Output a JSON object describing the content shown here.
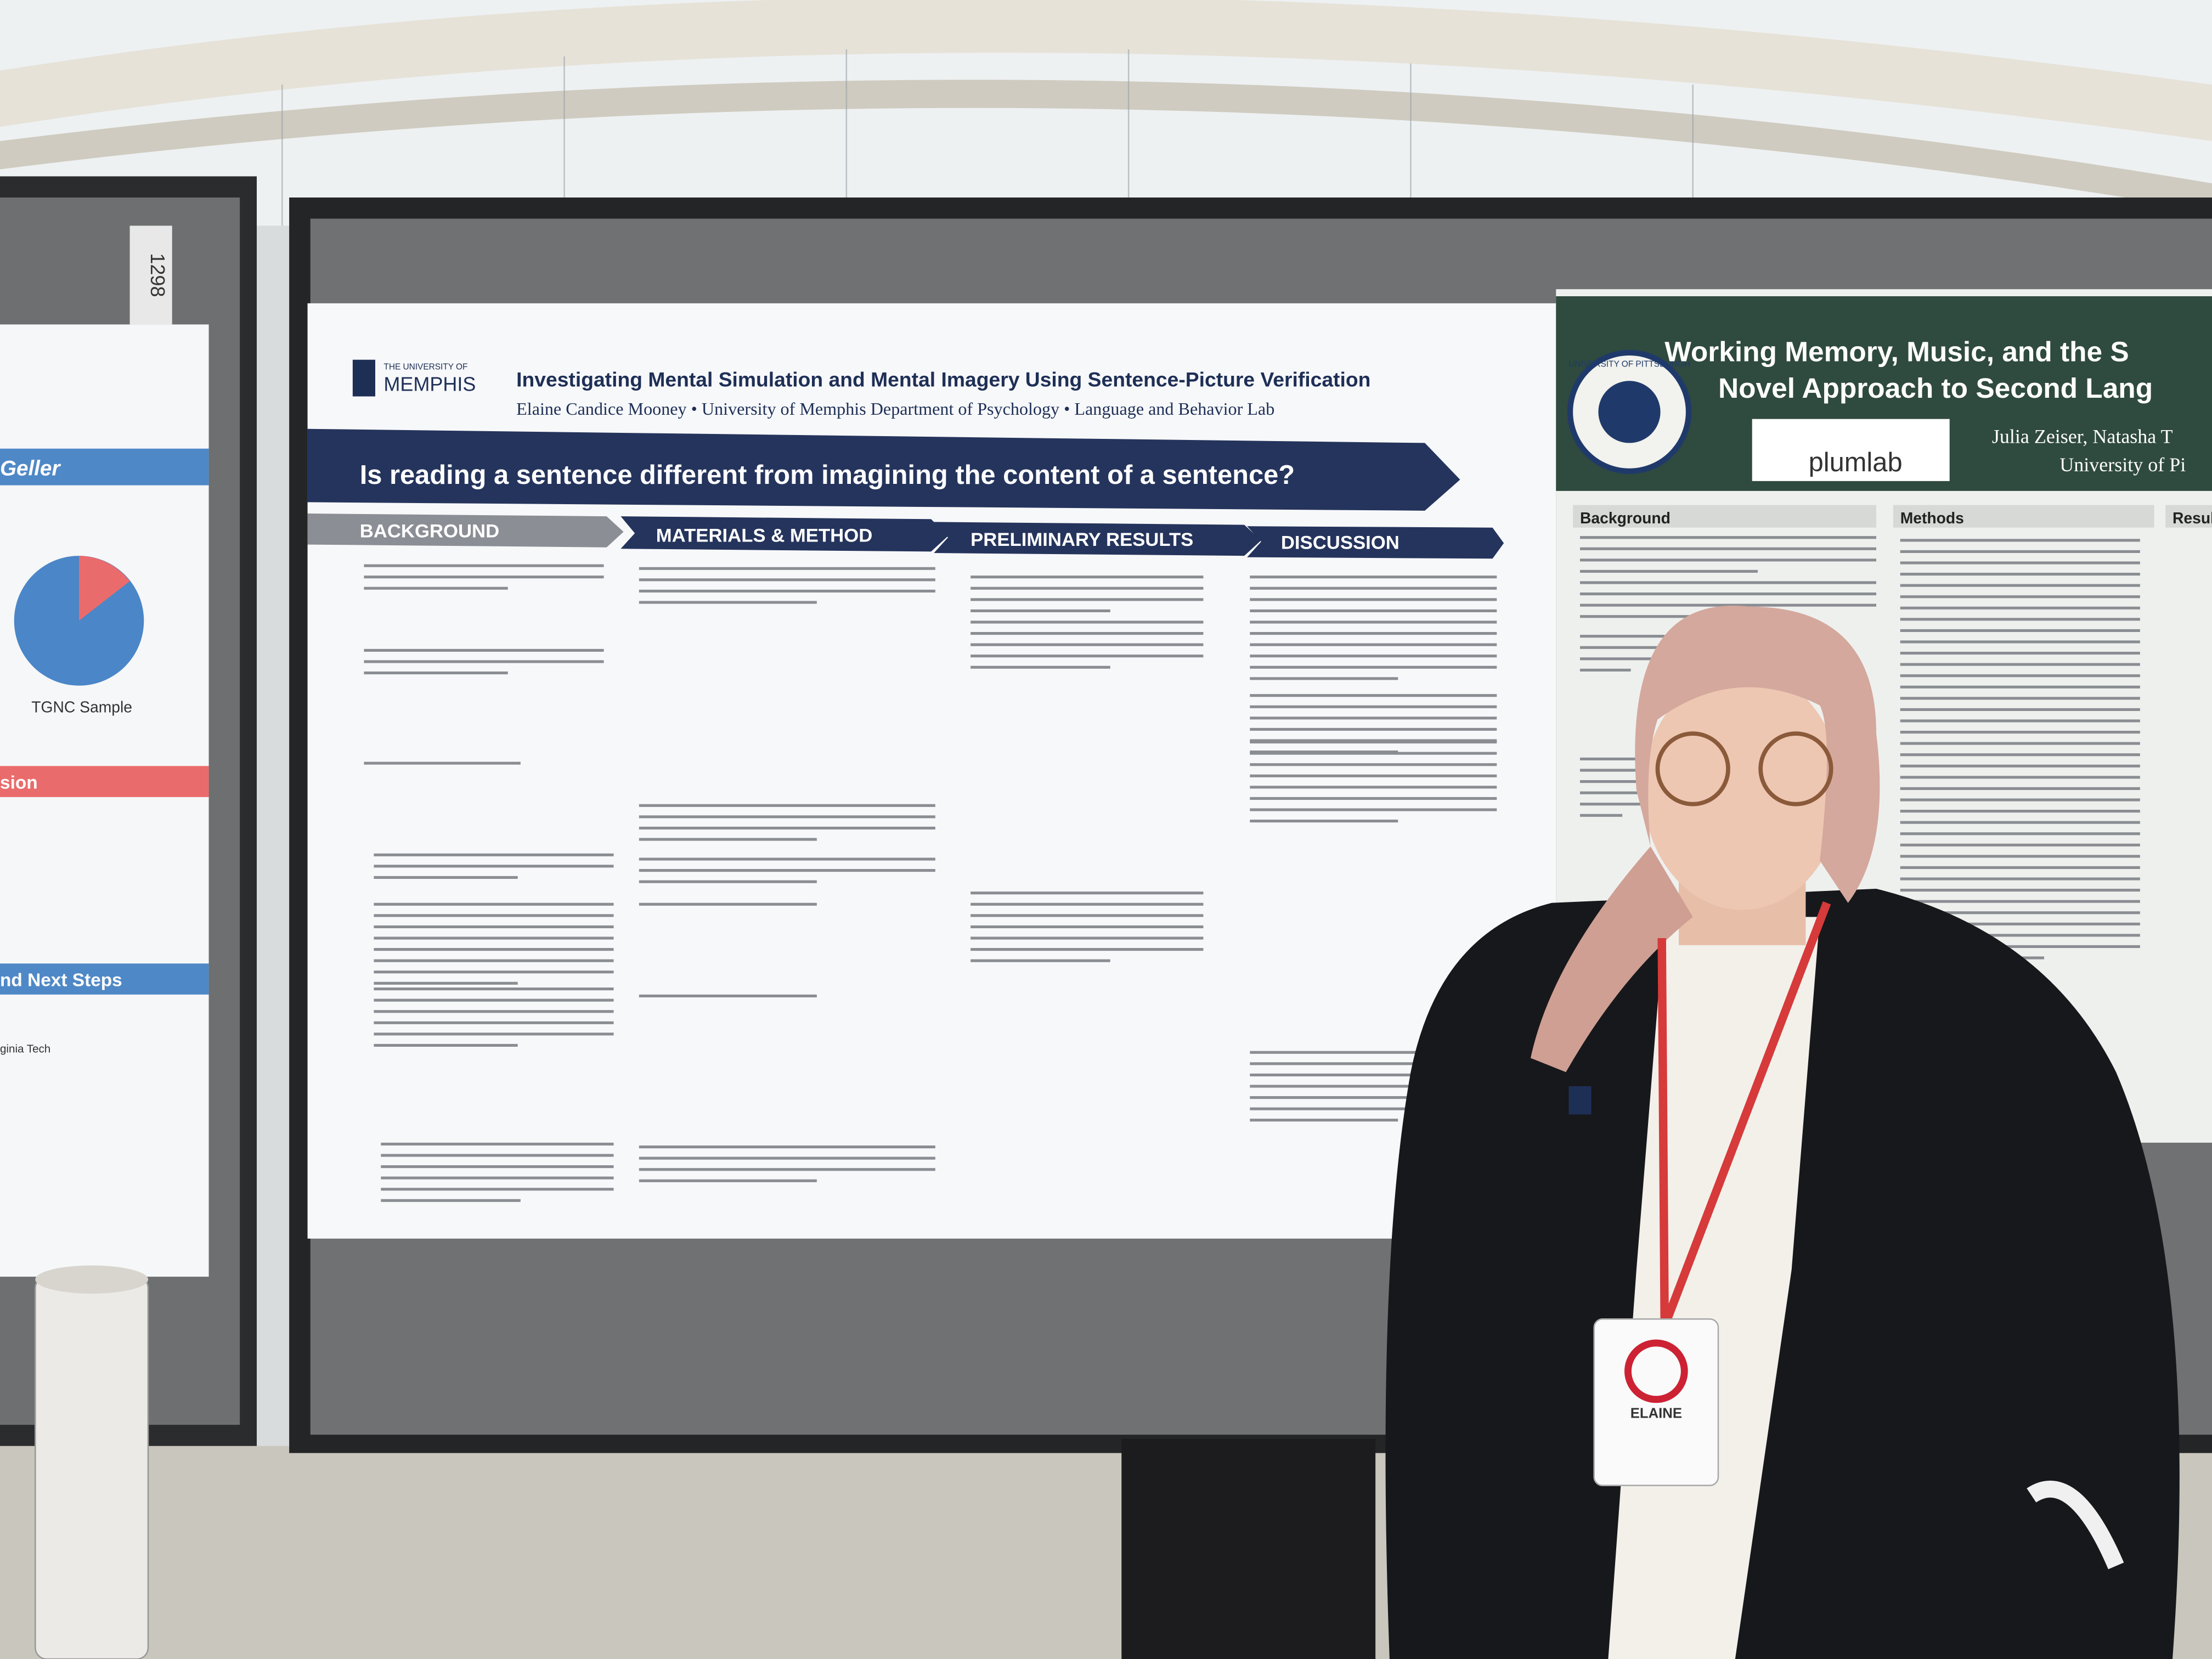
{
  "main_poster": {
    "logo": "MEMPHIS",
    "logo_small": "THE UNIVERSITY OF",
    "title": "Investigating Mental Simulation and Mental Imagery Using Sentence-Picture Verification",
    "authors": "Elaine Candice Mooney • University of Memphis Department of Psychology • Language and Behavior Lab",
    "question": "Is reading a sentence different from imagining the content of a sentence?",
    "sections": [
      "BACKGROUND",
      "MATERIALS & METHOD",
      "PRELIMINARY RESULTS",
      "DISCUSSION"
    ]
  },
  "right_poster": {
    "title_line1": "Working Memory, Music, and the S",
    "title_line2": "Novel Approach to Second Lang",
    "authors": "Julia Zeiser, Natasha T",
    "affiliation": "University of Pi",
    "lab": "plumlab",
    "seal": "UNIVERSITY OF PITTSBURGH",
    "sections": [
      "Background",
      "Methods",
      "Resul"
    ]
  },
  "left_poster": {
    "board_number": "1298",
    "heading1": "Geller",
    "chart_label": "TGNC Sample",
    "heading2": "sion",
    "heading3": "nd Next Steps",
    "footer": "ginia Tech"
  },
  "badge": {
    "name": "ELAINE"
  }
}
